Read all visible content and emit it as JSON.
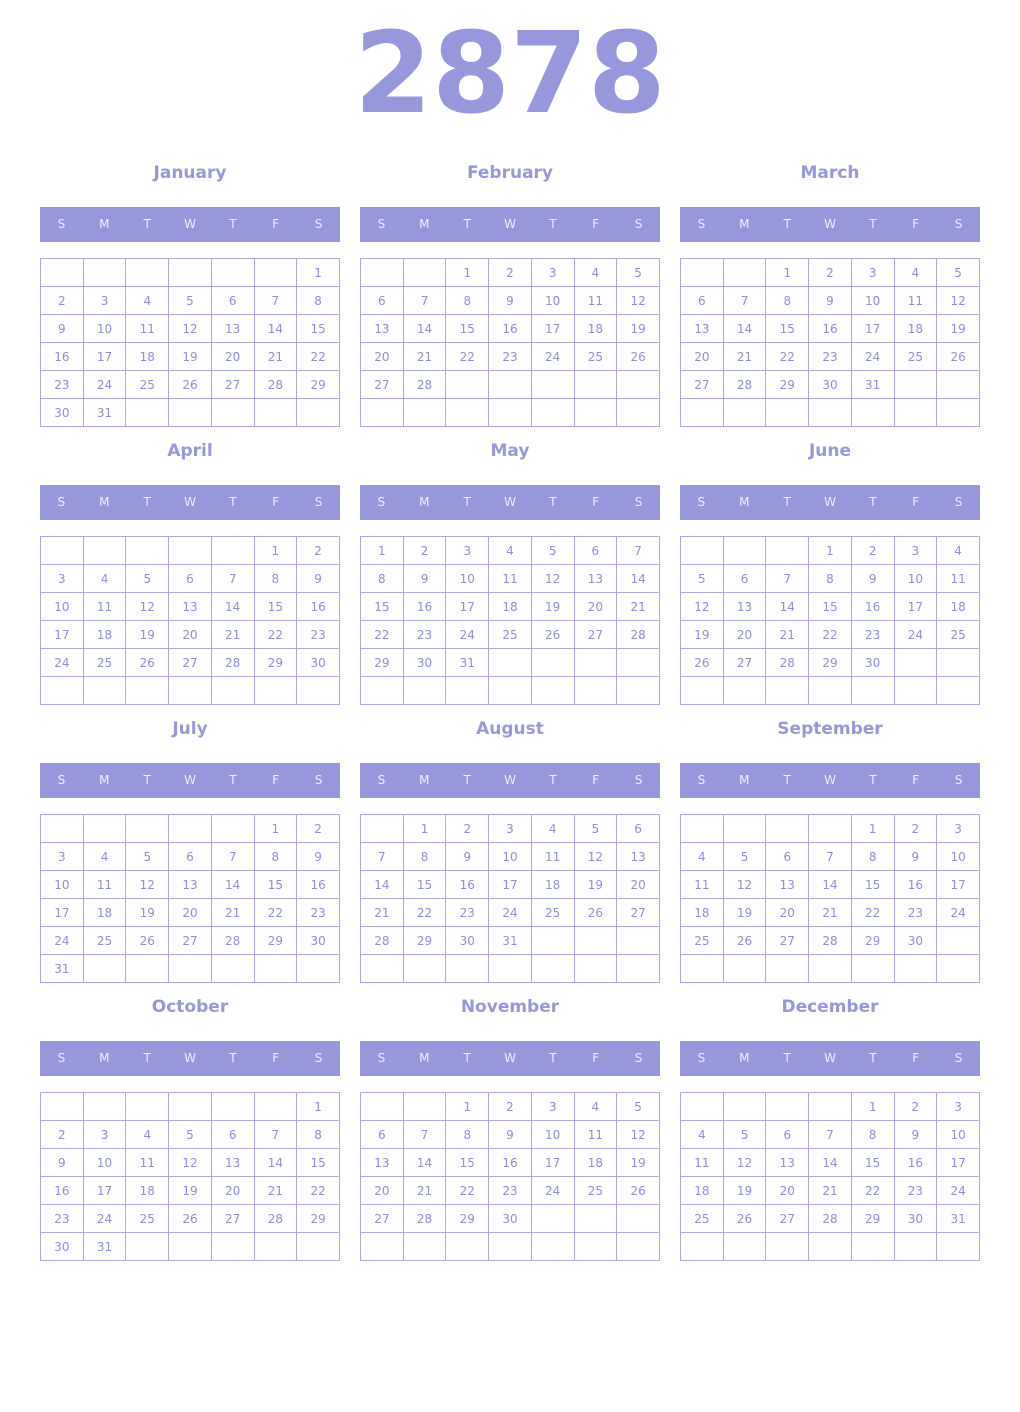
{
  "year": "2878",
  "accent": "#9797db",
  "weekdays": [
    "S",
    "M",
    "T",
    "W",
    "T",
    "F",
    "S"
  ],
  "months": [
    {
      "name": "January",
      "weeks": [
        [
          null,
          null,
          null,
          null,
          null,
          null,
          1
        ],
        [
          2,
          3,
          4,
          5,
          6,
          7,
          8
        ],
        [
          9,
          10,
          11,
          12,
          13,
          14,
          15
        ],
        [
          16,
          17,
          18,
          19,
          20,
          21,
          22
        ],
        [
          23,
          24,
          25,
          26,
          27,
          28,
          29
        ],
        [
          30,
          31,
          null,
          null,
          null,
          null,
          null
        ]
      ]
    },
    {
      "name": "February",
      "weeks": [
        [
          null,
          null,
          1,
          2,
          3,
          4,
          5
        ],
        [
          6,
          7,
          8,
          9,
          10,
          11,
          12
        ],
        [
          13,
          14,
          15,
          16,
          17,
          18,
          19
        ],
        [
          20,
          21,
          22,
          23,
          24,
          25,
          26
        ],
        [
          27,
          28,
          null,
          null,
          null,
          null,
          null
        ],
        [
          null,
          null,
          null,
          null,
          null,
          null,
          null
        ]
      ]
    },
    {
      "name": "March",
      "weeks": [
        [
          null,
          null,
          1,
          2,
          3,
          4,
          5
        ],
        [
          6,
          7,
          8,
          9,
          10,
          11,
          12
        ],
        [
          13,
          14,
          15,
          16,
          17,
          18,
          19
        ],
        [
          20,
          21,
          22,
          23,
          24,
          25,
          26
        ],
        [
          27,
          28,
          29,
          30,
          31,
          null,
          null
        ],
        [
          null,
          null,
          null,
          null,
          null,
          null,
          null
        ]
      ]
    },
    {
      "name": "April",
      "weeks": [
        [
          null,
          null,
          null,
          null,
          null,
          1,
          2
        ],
        [
          3,
          4,
          5,
          6,
          7,
          8,
          9
        ],
        [
          10,
          11,
          12,
          13,
          14,
          15,
          16
        ],
        [
          17,
          18,
          19,
          20,
          21,
          22,
          23
        ],
        [
          24,
          25,
          26,
          27,
          28,
          29,
          30
        ],
        [
          null,
          null,
          null,
          null,
          null,
          null,
          null
        ]
      ]
    },
    {
      "name": "May",
      "weeks": [
        [
          1,
          2,
          3,
          4,
          5,
          6,
          7
        ],
        [
          8,
          9,
          10,
          11,
          12,
          13,
          14
        ],
        [
          15,
          16,
          17,
          18,
          19,
          20,
          21
        ],
        [
          22,
          23,
          24,
          25,
          26,
          27,
          28
        ],
        [
          29,
          30,
          31,
          null,
          null,
          null,
          null
        ],
        [
          null,
          null,
          null,
          null,
          null,
          null,
          null
        ]
      ]
    },
    {
      "name": "June",
      "weeks": [
        [
          null,
          null,
          null,
          1,
          2,
          3,
          4
        ],
        [
          5,
          6,
          7,
          8,
          9,
          10,
          11
        ],
        [
          12,
          13,
          14,
          15,
          16,
          17,
          18
        ],
        [
          19,
          20,
          21,
          22,
          23,
          24,
          25
        ],
        [
          26,
          27,
          28,
          29,
          30,
          null,
          null
        ],
        [
          null,
          null,
          null,
          null,
          null,
          null,
          null
        ]
      ]
    },
    {
      "name": "July",
      "weeks": [
        [
          null,
          null,
          null,
          null,
          null,
          1,
          2
        ],
        [
          3,
          4,
          5,
          6,
          7,
          8,
          9
        ],
        [
          10,
          11,
          12,
          13,
          14,
          15,
          16
        ],
        [
          17,
          18,
          19,
          20,
          21,
          22,
          23
        ],
        [
          24,
          25,
          26,
          27,
          28,
          29,
          30
        ],
        [
          31,
          null,
          null,
          null,
          null,
          null,
          null
        ]
      ]
    },
    {
      "name": "August",
      "weeks": [
        [
          null,
          1,
          2,
          3,
          4,
          5,
          6
        ],
        [
          7,
          8,
          9,
          10,
          11,
          12,
          13
        ],
        [
          14,
          15,
          16,
          17,
          18,
          19,
          20
        ],
        [
          21,
          22,
          23,
          24,
          25,
          26,
          27
        ],
        [
          28,
          29,
          30,
          31,
          null,
          null,
          null
        ],
        [
          null,
          null,
          null,
          null,
          null,
          null,
          null
        ]
      ]
    },
    {
      "name": "September",
      "weeks": [
        [
          null,
          null,
          null,
          null,
          1,
          2,
          3
        ],
        [
          4,
          5,
          6,
          7,
          8,
          9,
          10
        ],
        [
          11,
          12,
          13,
          14,
          15,
          16,
          17
        ],
        [
          18,
          19,
          20,
          21,
          22,
          23,
          24
        ],
        [
          25,
          26,
          27,
          28,
          29,
          30,
          null
        ],
        [
          null,
          null,
          null,
          null,
          null,
          null,
          null
        ]
      ]
    },
    {
      "name": "October",
      "weeks": [
        [
          null,
          null,
          null,
          null,
          null,
          null,
          1
        ],
        [
          2,
          3,
          4,
          5,
          6,
          7,
          8
        ],
        [
          9,
          10,
          11,
          12,
          13,
          14,
          15
        ],
        [
          16,
          17,
          18,
          19,
          20,
          21,
          22
        ],
        [
          23,
          24,
          25,
          26,
          27,
          28,
          29
        ],
        [
          30,
          31,
          null,
          null,
          null,
          null,
          null
        ]
      ]
    },
    {
      "name": "November",
      "weeks": [
        [
          null,
          null,
          1,
          2,
          3,
          4,
          5
        ],
        [
          6,
          7,
          8,
          9,
          10,
          11,
          12
        ],
        [
          13,
          14,
          15,
          16,
          17,
          18,
          19
        ],
        [
          20,
          21,
          22,
          23,
          24,
          25,
          26
        ],
        [
          27,
          28,
          29,
          30,
          null,
          null,
          null
        ],
        [
          null,
          null,
          null,
          null,
          null,
          null,
          null
        ]
      ]
    },
    {
      "name": "December",
      "weeks": [
        [
          null,
          null,
          null,
          null,
          1,
          2,
          3
        ],
        [
          4,
          5,
          6,
          7,
          8,
          9,
          10
        ],
        [
          11,
          12,
          13,
          14,
          15,
          16,
          17
        ],
        [
          18,
          19,
          20,
          21,
          22,
          23,
          24
        ],
        [
          25,
          26,
          27,
          28,
          29,
          30,
          31
        ],
        [
          null,
          null,
          null,
          null,
          null,
          null,
          null
        ]
      ]
    }
  ]
}
